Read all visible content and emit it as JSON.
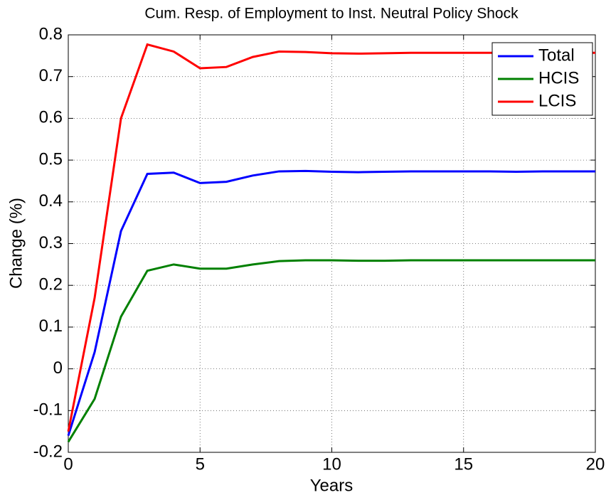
{
  "chart_data": {
    "type": "line",
    "title": "Cum. Resp. of Employment to Inst. Neutral Policy Shock",
    "x_label": "Years",
    "y_label": "Change (%)",
    "x": [
      0,
      1,
      2,
      3,
      4,
      5,
      6,
      7,
      8,
      9,
      10,
      11,
      12,
      13,
      14,
      15,
      16,
      17,
      18,
      19,
      20
    ],
    "series": [
      {
        "name": "Total",
        "color": "#0000ff",
        "values": [
          -0.16,
          0.04,
          0.33,
          0.467,
          0.47,
          0.445,
          0.448,
          0.463,
          0.473,
          0.474,
          0.472,
          0.471,
          0.472,
          0.473,
          0.473,
          0.473,
          0.473,
          0.472,
          0.473,
          0.473,
          0.473
        ]
      },
      {
        "name": "HCIS",
        "color": "#008000",
        "values": [
          -0.175,
          -0.072,
          0.125,
          0.235,
          0.25,
          0.24,
          0.24,
          0.25,
          0.258,
          0.26,
          0.26,
          0.259,
          0.259,
          0.26,
          0.26,
          0.26,
          0.26,
          0.26,
          0.26,
          0.26,
          0.26
        ]
      },
      {
        "name": "LCIS",
        "color": "#ff0000",
        "values": [
          -0.15,
          0.17,
          0.6,
          0.777,
          0.76,
          0.72,
          0.723,
          0.747,
          0.76,
          0.759,
          0.756,
          0.755,
          0.756,
          0.757,
          0.757,
          0.757,
          0.757,
          0.757,
          0.757,
          0.757,
          0.757
        ]
      }
    ],
    "xlim": [
      0,
      20
    ],
    "xticks": [
      0,
      5,
      10,
      15,
      20
    ],
    "ylim": [
      -0.2,
      0.8
    ],
    "yticks": [
      -0.2,
      -0.1,
      0,
      0.1,
      0.2,
      0.3,
      0.4,
      0.5,
      0.6,
      0.7,
      0.8
    ],
    "grid": true,
    "legend": "northeast"
  }
}
